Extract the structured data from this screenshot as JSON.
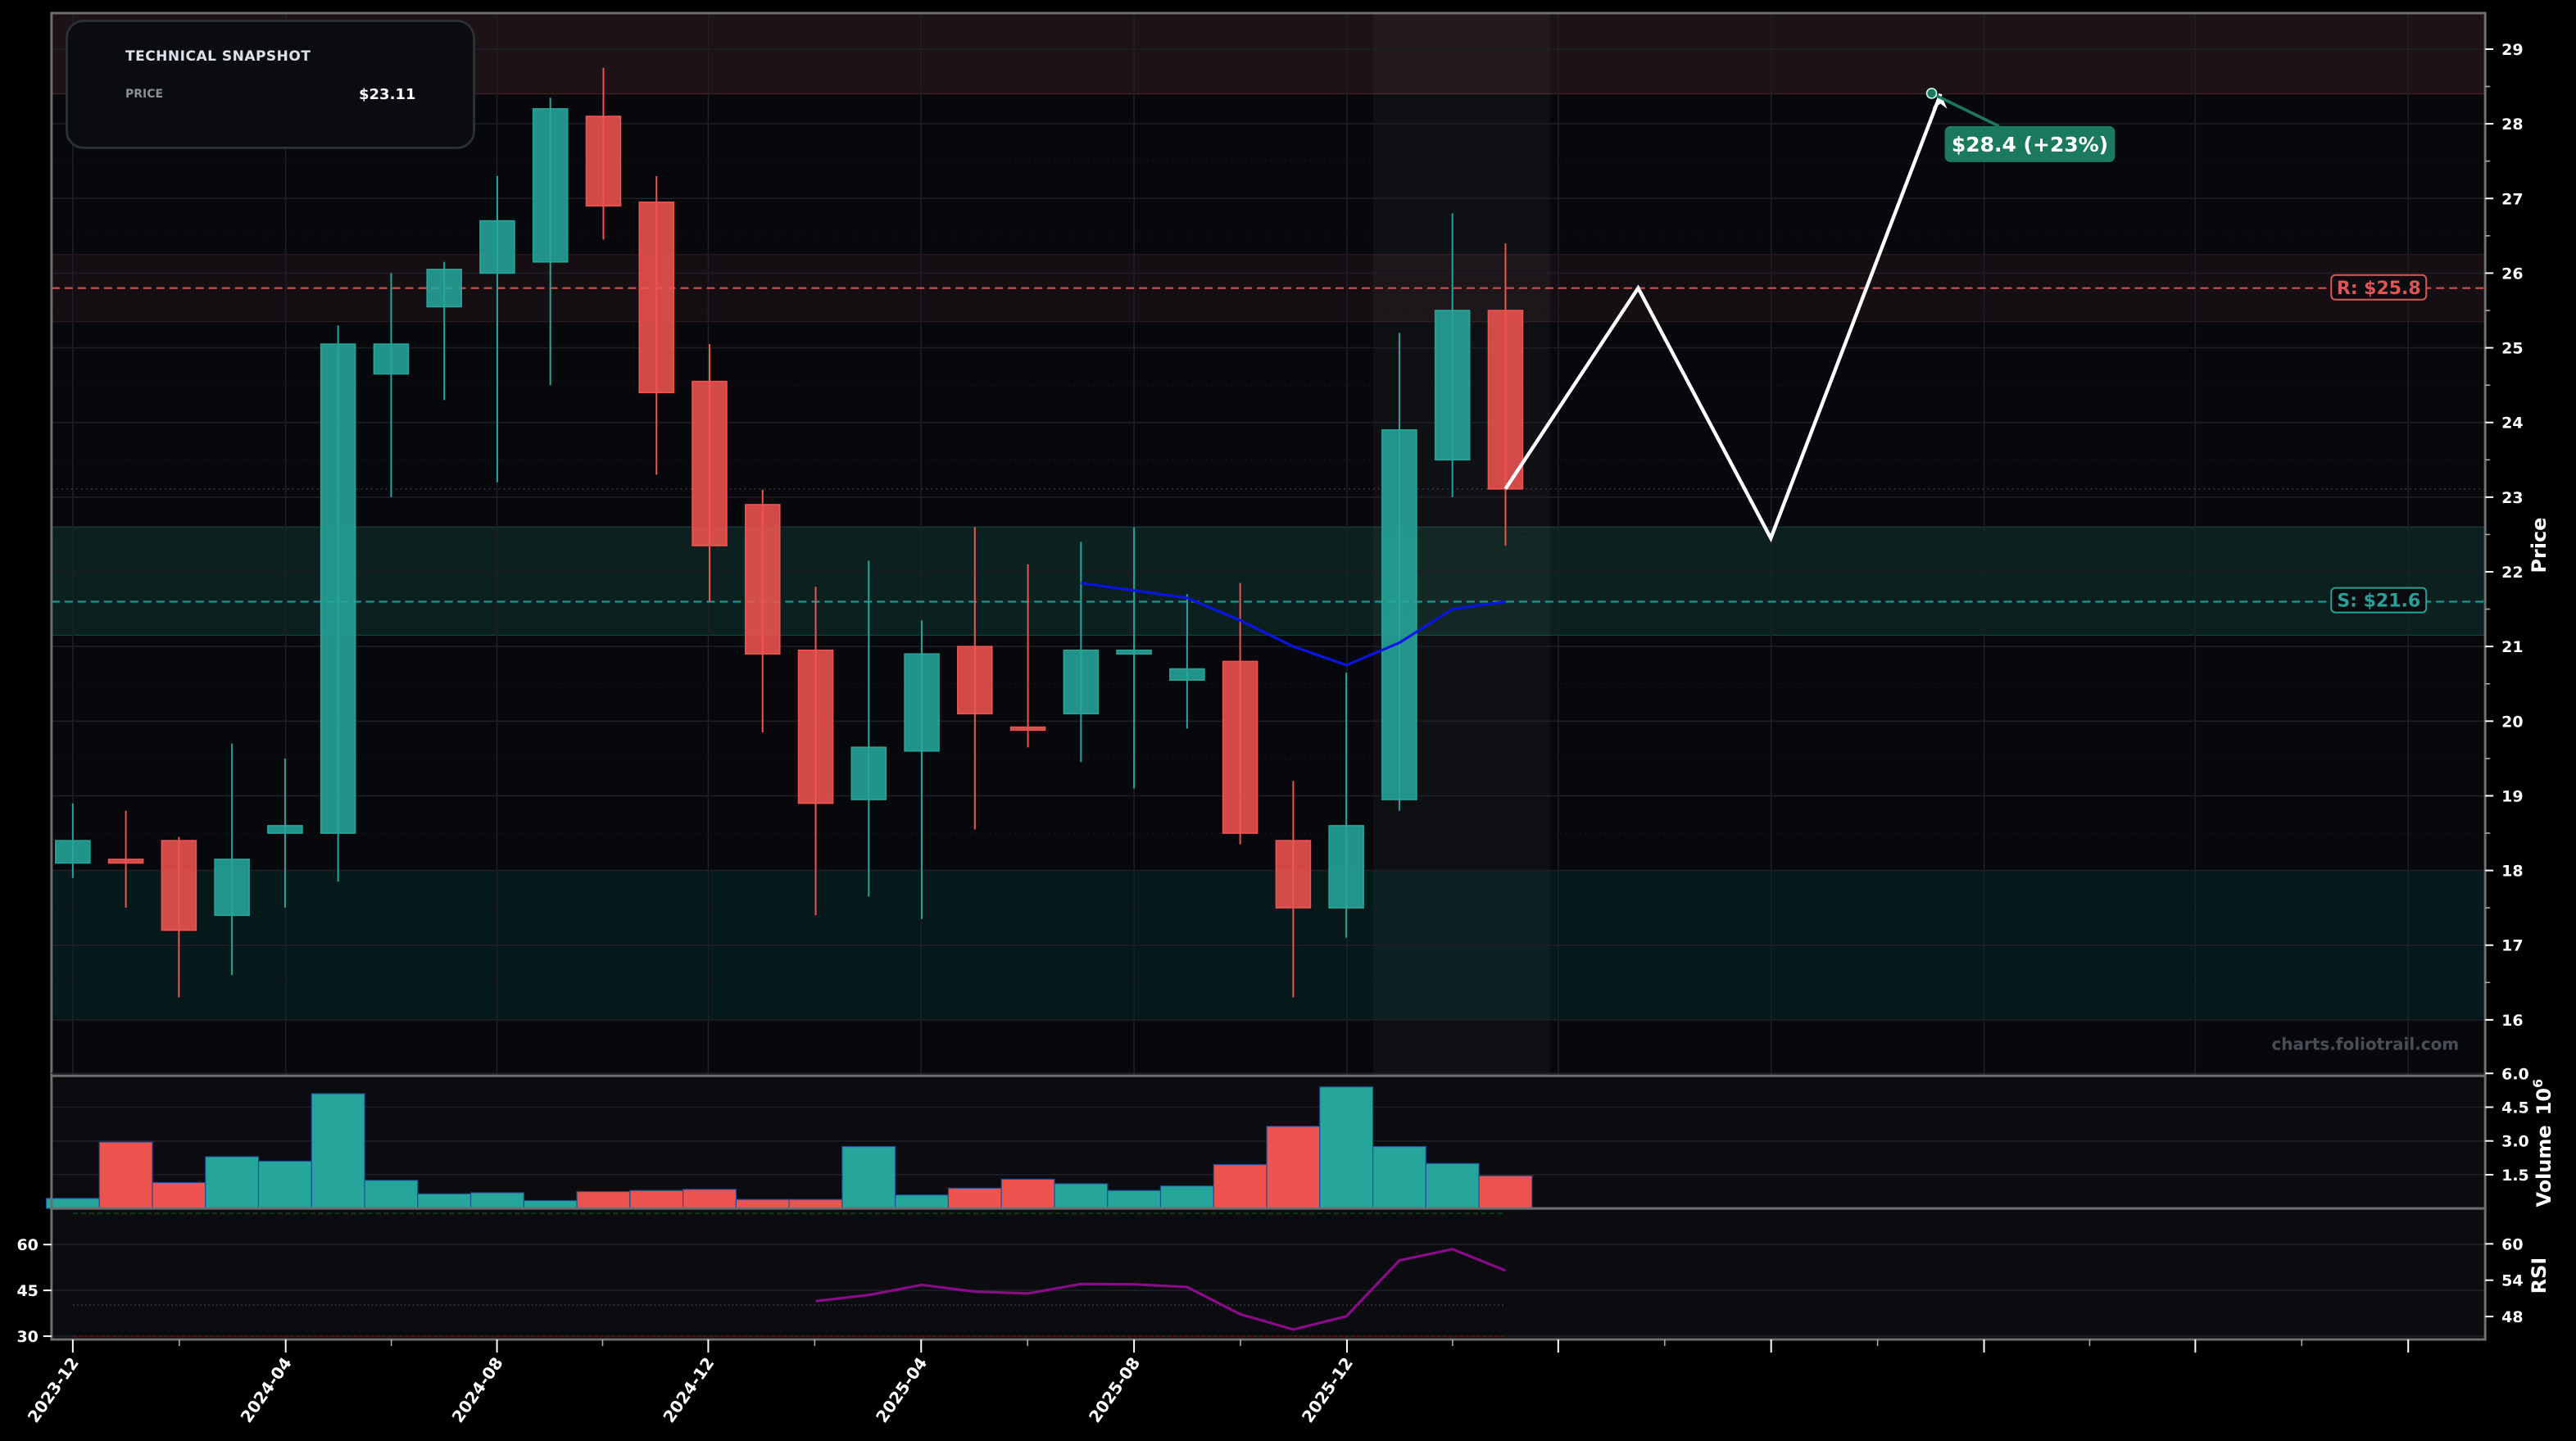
{
  "snapshot": {
    "title": "TECHNICAL SNAPSHOT",
    "price_label": "PRICE",
    "price_value": "$23.11"
  },
  "labels": {
    "resistance": "R: $25.8",
    "support": "S: $21.6",
    "target": "$28.4 (+23%)",
    "watermark": "charts.foliotrail.com",
    "price_axis": "Price",
    "volume_axis": "Volume",
    "volume_exp": "10",
    "volume_exp_sup": "6",
    "rsi_axis": "RSI"
  },
  "colors": {
    "bg": "#07080c",
    "up": "#26a69a",
    "down": "#ef5350",
    "resistance": "#e05555",
    "support": "#2aa198",
    "ma": "#0a14e6",
    "rsi": "#8b0a8b",
    "projection": "#ffffff",
    "target_box": "#1b7a5e"
  },
  "chart_data": {
    "type": "candlestick",
    "title": "",
    "ylabel": "Price",
    "ylim": [
      15.6,
      29.5
    ],
    "yticks": [
      16,
      17,
      18,
      19,
      20,
      21,
      22,
      23,
      24,
      25,
      26,
      27,
      28,
      29
    ],
    "xtick_labels": [
      "2023-12",
      "2024-04",
      "2024-08",
      "2024-12",
      "2025-04",
      "2025-08",
      "2025-12"
    ],
    "grid": true,
    "candles": [
      {
        "o": 18.1,
        "h": 18.9,
        "l": 17.9,
        "c": 18.4
      },
      {
        "o": 18.15,
        "h": 18.8,
        "l": 17.5,
        "c": 18.1
      },
      {
        "o": 18.4,
        "h": 18.45,
        "l": 16.3,
        "c": 17.2
      },
      {
        "o": 17.4,
        "h": 19.7,
        "l": 16.6,
        "c": 18.15
      },
      {
        "o": 18.5,
        "h": 19.5,
        "l": 17.5,
        "c": 18.6
      },
      {
        "o": 18.5,
        "h": 25.3,
        "l": 17.85,
        "c": 25.05
      },
      {
        "o": 24.65,
        "h": 26.0,
        "l": 23.0,
        "c": 25.05
      },
      {
        "o": 25.55,
        "h": 26.15,
        "l": 24.3,
        "c": 26.05
      },
      {
        "o": 26.0,
        "h": 27.3,
        "l": 23.2,
        "c": 26.7
      },
      {
        "o": 26.15,
        "h": 28.35,
        "l": 24.5,
        "c": 28.2
      },
      {
        "o": 28.1,
        "h": 28.75,
        "l": 26.45,
        "c": 26.9
      },
      {
        "o": 26.95,
        "h": 27.3,
        "l": 23.3,
        "c": 24.4
      },
      {
        "o": 24.55,
        "h": 25.05,
        "l": 21.6,
        "c": 22.35
      },
      {
        "o": 22.9,
        "h": 23.1,
        "l": 19.85,
        "c": 20.9
      },
      {
        "o": 20.95,
        "h": 21.8,
        "l": 17.4,
        "c": 18.9
      },
      {
        "o": 18.95,
        "h": 22.15,
        "l": 17.65,
        "c": 19.65
      },
      {
        "o": 19.6,
        "h": 21.35,
        "l": 17.35,
        "c": 20.9
      },
      {
        "o": 21.0,
        "h": 22.6,
        "l": 18.55,
        "c": 20.1
      },
      {
        "o": 19.92,
        "h": 22.1,
        "l": 19.65,
        "c": 19.88
      },
      {
        "o": 20.1,
        "h": 22.4,
        "l": 19.45,
        "c": 20.95
      },
      {
        "o": 20.9,
        "h": 22.6,
        "l": 19.1,
        "c": 20.95
      },
      {
        "o": 20.55,
        "h": 21.7,
        "l": 19.9,
        "c": 20.7
      },
      {
        "o": 20.8,
        "h": 21.85,
        "l": 18.35,
        "c": 18.5
      },
      {
        "o": 18.4,
        "h": 19.2,
        "l": 16.3,
        "c": 17.5
      },
      {
        "o": 17.5,
        "h": 20.65,
        "l": 17.1,
        "c": 18.6
      },
      {
        "o": 18.95,
        "h": 25.2,
        "l": 18.8,
        "c": 23.9
      },
      {
        "o": 23.5,
        "h": 26.8,
        "l": 23.0,
        "c": 25.5
      },
      {
        "o": 25.5,
        "h": 26.4,
        "l": 22.35,
        "c": 23.11
      }
    ],
    "moving_average": {
      "start_index": 19,
      "values": [
        21.85,
        21.75,
        21.65,
        21.35,
        21.0,
        20.75,
        21.05,
        21.5,
        21.6
      ]
    },
    "resistance": {
      "level": 25.8,
      "zone": [
        25.35,
        26.25
      ]
    },
    "support": {
      "level": 21.6,
      "zone": [
        21.15,
        22.6
      ]
    },
    "demand_zone": [
      16.0,
      18.0
    ],
    "supply_zone": [
      28.4,
      29.5
    ],
    "projection_path": [
      {
        "i": 27,
        "p": 23.11
      },
      {
        "i": 29.5,
        "p": 25.8
      },
      {
        "i": 32,
        "p": 22.45
      },
      {
        "i": 35.2,
        "p": 28.4
      }
    ],
    "target": {
      "price": 28.4,
      "change_pct": 23
    },
    "volume": {
      "ylabel": "Volume (10^6)",
      "yticks": [
        1.5,
        3.0,
        4.5,
        6.0
      ],
      "values": [
        0.45,
        2.95,
        1.15,
        2.3,
        2.1,
        5.1,
        1.25,
        0.65,
        0.7,
        0.35,
        0.75,
        0.8,
        0.85,
        0.4,
        0.4,
        2.75,
        0.6,
        0.9,
        1.3,
        1.1,
        0.8,
        1.0,
        1.95,
        3.65,
        5.4,
        2.75,
        2.0,
        1.45
      ]
    },
    "rsi": {
      "ylabel": "RSI",
      "yticks_left": [
        30,
        45,
        60
      ],
      "yticks_right": [
        48,
        54,
        60
      ],
      "overbought": 70,
      "oversold": 30,
      "start_index": 14,
      "values": [
        41.5,
        43.5,
        46.8,
        44.6,
        44.0,
        47.1,
        47.0,
        46.1,
        37.2,
        32.2,
        36.5,
        54.8,
        58.5,
        51.5
      ]
    }
  }
}
